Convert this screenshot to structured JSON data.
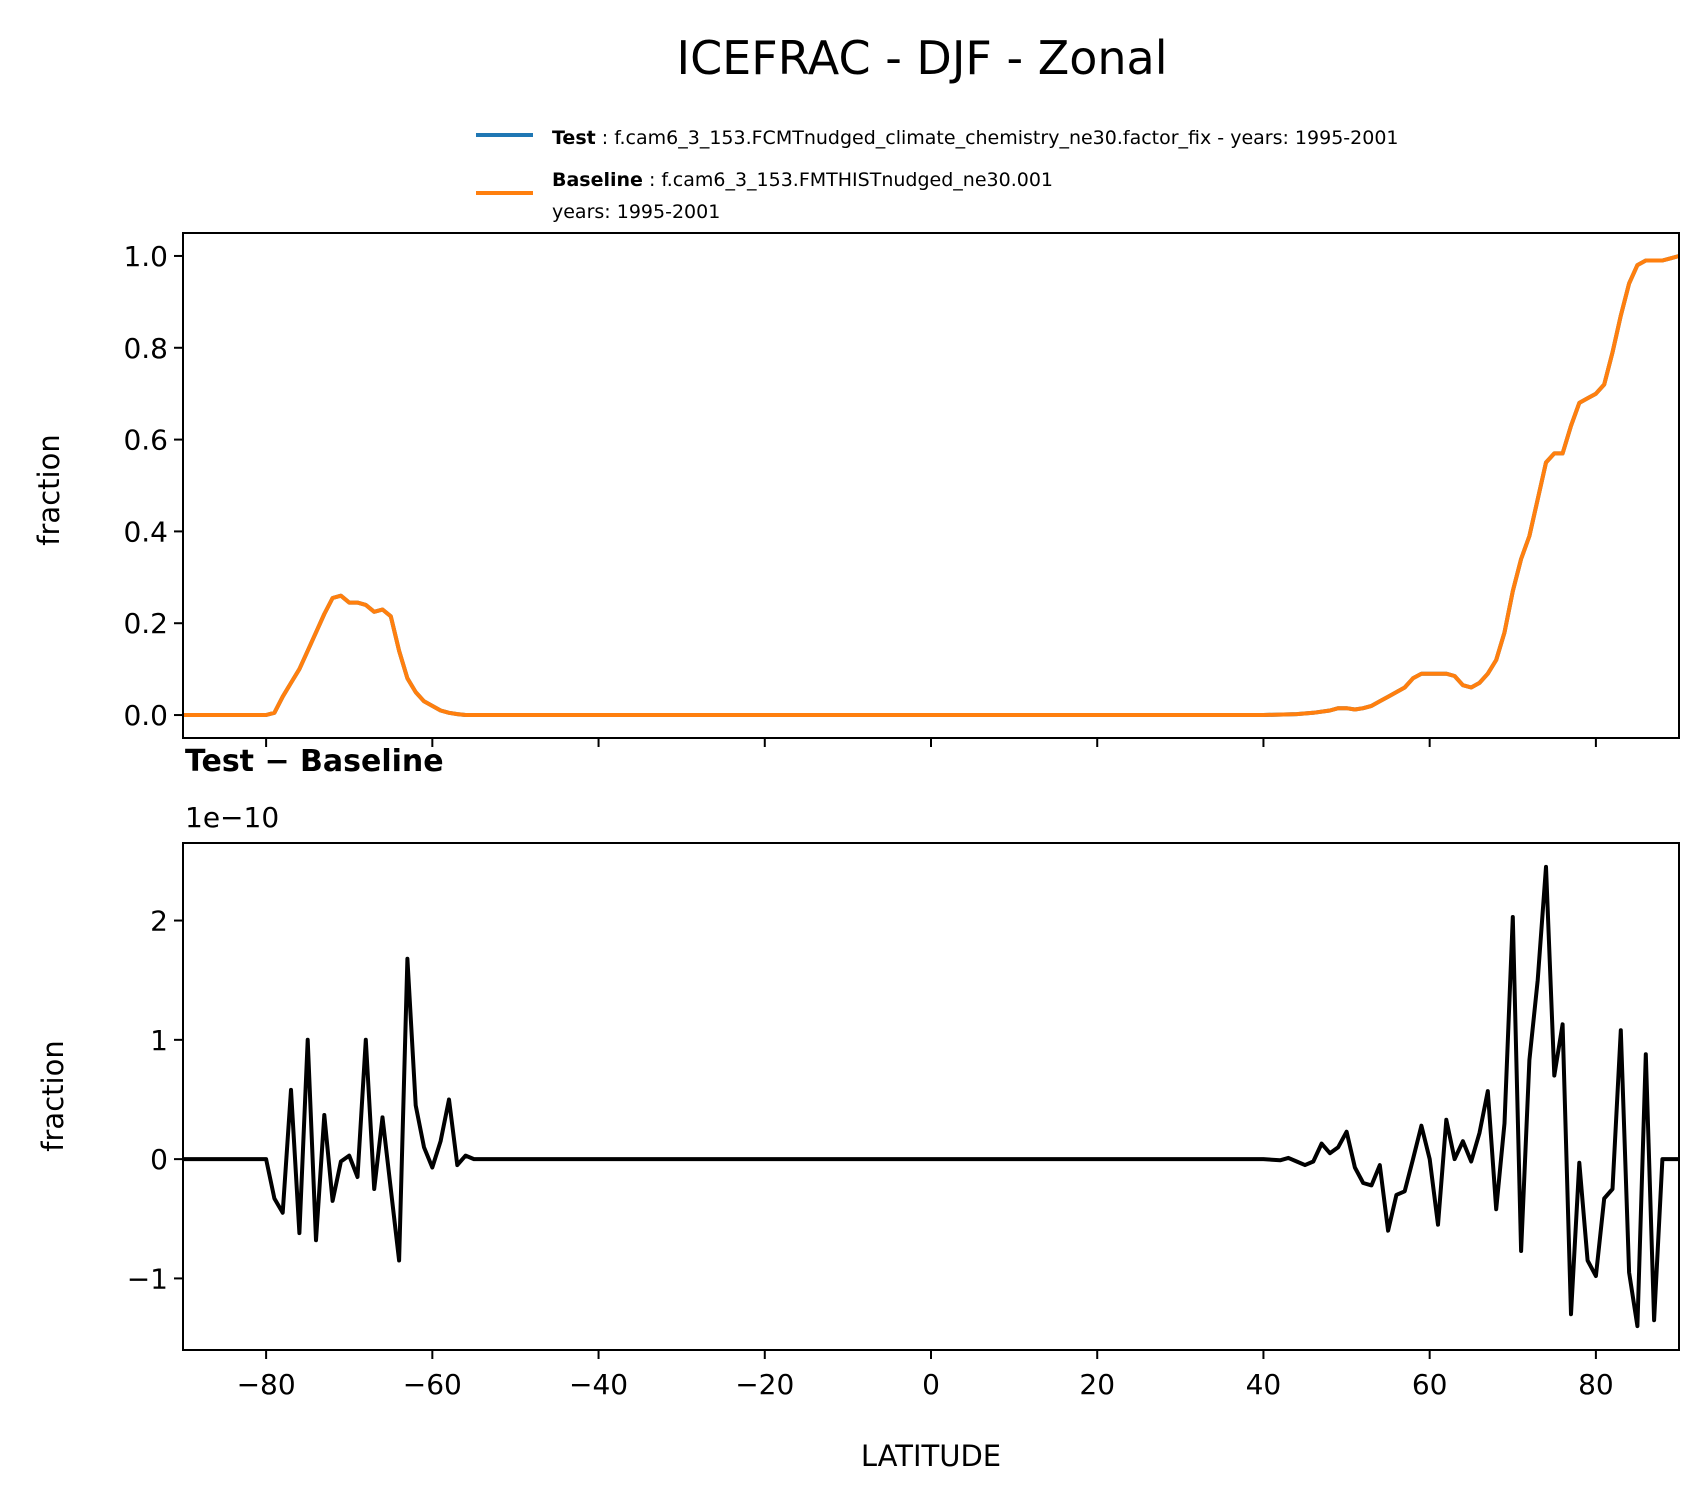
{
  "figure": {
    "title": "ICEFRAC - DJF - Zonal"
  },
  "legend": {
    "entries": [
      {
        "name": "Test",
        "sep": " : ",
        "text": "f.cam6_3_153.FCMTnudged_climate_chemistry_ne30.factor_fix - years: 1995-2001",
        "text2": "",
        "color": "#1f77b4"
      },
      {
        "name": "Baseline",
        "sep": " : ",
        "text": "f.cam6_3_153.FMTHISTnudged_ne30.001",
        "text2": "years: 1995-2001",
        "color": "#ff7f0e"
      }
    ]
  },
  "chart_data": [
    {
      "type": "line",
      "ylabel": "fraction",
      "xlim": [
        -90,
        90
      ],
      "ylim": [
        -0.05,
        1.05
      ],
      "yticks": [
        0.0,
        0.2,
        0.4,
        0.6,
        0.8,
        1.0
      ],
      "ytick_labels": [
        "0.0",
        "0.2",
        "0.4",
        "0.6",
        "0.8",
        "1.0"
      ],
      "xticks": [
        -80,
        -60,
        -40,
        -20,
        0,
        20,
        40,
        60,
        80
      ],
      "series": [
        {
          "name": "Test",
          "color": "#1f77b4",
          "x": [
            -90,
            -80,
            -79,
            -78,
            -77,
            -76,
            -75,
            -74,
            -73,
            -72,
            -71,
            -70,
            -69,
            -68,
            -67,
            -66,
            -65,
            -64,
            -63,
            -62,
            -61,
            -60,
            -59,
            -58,
            -57,
            -56,
            -55,
            -50,
            0,
            40,
            44,
            46,
            48,
            49,
            50,
            51,
            52,
            53,
            54,
            55,
            56,
            57,
            58,
            59,
            60,
            61,
            62,
            63,
            64,
            65,
            66,
            67,
            68,
            69,
            70,
            71,
            72,
            73,
            74,
            75,
            76,
            77,
            78,
            79,
            80,
            81,
            82,
            83,
            84,
            85,
            86,
            87,
            88,
            89,
            90
          ],
          "y": [
            0.0,
            0.0,
            0.005,
            0.04,
            0.07,
            0.1,
            0.14,
            0.18,
            0.22,
            0.255,
            0.26,
            0.245,
            0.245,
            0.24,
            0.225,
            0.23,
            0.215,
            0.14,
            0.08,
            0.05,
            0.03,
            0.02,
            0.01,
            0.005,
            0.002,
            0.0,
            0.0,
            0.0,
            0.0,
            0.0,
            0.002,
            0.005,
            0.01,
            0.015,
            0.015,
            0.012,
            0.015,
            0.02,
            0.03,
            0.04,
            0.05,
            0.06,
            0.08,
            0.09,
            0.09,
            0.09,
            0.09,
            0.085,
            0.065,
            0.06,
            0.07,
            0.09,
            0.12,
            0.18,
            0.27,
            0.34,
            0.39,
            0.47,
            0.55,
            0.57,
            0.57,
            0.63,
            0.68,
            0.69,
            0.7,
            0.72,
            0.79,
            0.87,
            0.94,
            0.98,
            0.99,
            0.99,
            0.99,
            0.995,
            1.0
          ]
        },
        {
          "name": "Baseline",
          "color": "#ff7f0e",
          "x": [
            -90,
            -80,
            -79,
            -78,
            -77,
            -76,
            -75,
            -74,
            -73,
            -72,
            -71,
            -70,
            -69,
            -68,
            -67,
            -66,
            -65,
            -64,
            -63,
            -62,
            -61,
            -60,
            -59,
            -58,
            -57,
            -56,
            -55,
            -50,
            0,
            40,
            44,
            46,
            48,
            49,
            50,
            51,
            52,
            53,
            54,
            55,
            56,
            57,
            58,
            59,
            60,
            61,
            62,
            63,
            64,
            65,
            66,
            67,
            68,
            69,
            70,
            71,
            72,
            73,
            74,
            75,
            76,
            77,
            78,
            79,
            80,
            81,
            82,
            83,
            84,
            85,
            86,
            87,
            88,
            89,
            90
          ],
          "y": [
            0.0,
            0.0,
            0.005,
            0.04,
            0.07,
            0.1,
            0.14,
            0.18,
            0.22,
            0.255,
            0.26,
            0.245,
            0.245,
            0.24,
            0.225,
            0.23,
            0.215,
            0.14,
            0.08,
            0.05,
            0.03,
            0.02,
            0.01,
            0.005,
            0.002,
            0.0,
            0.0,
            0.0,
            0.0,
            0.0,
            0.002,
            0.005,
            0.01,
            0.015,
            0.015,
            0.012,
            0.015,
            0.02,
            0.03,
            0.04,
            0.05,
            0.06,
            0.08,
            0.09,
            0.09,
            0.09,
            0.09,
            0.085,
            0.065,
            0.06,
            0.07,
            0.09,
            0.12,
            0.18,
            0.27,
            0.34,
            0.39,
            0.47,
            0.55,
            0.57,
            0.57,
            0.63,
            0.68,
            0.69,
            0.7,
            0.72,
            0.79,
            0.87,
            0.94,
            0.98,
            0.99,
            0.99,
            0.99,
            0.995,
            1.0
          ]
        }
      ]
    },
    {
      "type": "line",
      "title": "Test − Baseline",
      "offset_label": "1e−10",
      "ylabel": "fraction",
      "xlabel": "LATITUDE",
      "xlim": [
        -90,
        90
      ],
      "ylim": [
        -1.6,
        2.65
      ],
      "yticks": [
        -1,
        0,
        1,
        2
      ],
      "ytick_labels": [
        "−1",
        "0",
        "1",
        "2"
      ],
      "xticks": [
        -80,
        -60,
        -40,
        -20,
        0,
        20,
        40,
        60,
        80
      ],
      "xtick_labels": [
        "−80",
        "−60",
        "−40",
        "−20",
        "0",
        "20",
        "40",
        "60",
        "80"
      ],
      "series": [
        {
          "name": "Test − Baseline",
          "color": "#000000",
          "x": [
            -90,
            -80,
            -79,
            -78,
            -77,
            -76,
            -75,
            -74,
            -73,
            -72,
            -71,
            -70,
            -69,
            -68,
            -67,
            -66,
            -65,
            -64,
            -63,
            -62,
            -61,
            -60,
            -59,
            -58,
            -57,
            -56,
            -55,
            -50,
            0,
            40,
            42,
            43,
            44,
            45,
            46,
            47,
            48,
            49,
            50,
            51,
            52,
            53,
            54,
            55,
            56,
            57,
            58,
            59,
            60,
            61,
            62,
            63,
            64,
            65,
            66,
            67,
            68,
            69,
            70,
            71,
            72,
            73,
            74,
            75,
            76,
            77,
            78,
            79,
            80,
            81,
            82,
            83,
            84,
            85,
            86,
            87,
            88,
            89,
            90
          ],
          "y": [
            0.0,
            0.0,
            -0.33,
            -0.45,
            0.58,
            -0.62,
            1.0,
            -0.68,
            0.37,
            -0.35,
            -0.02,
            0.03,
            -0.15,
            1.0,
            -0.25,
            0.35,
            -0.25,
            -0.85,
            1.68,
            0.45,
            0.1,
            -0.07,
            0.15,
            0.5,
            -0.05,
            0.03,
            0.0,
            0.0,
            0.0,
            0.0,
            -0.01,
            0.01,
            -0.02,
            -0.05,
            -0.02,
            0.13,
            0.05,
            0.1,
            0.23,
            -0.07,
            -0.2,
            -0.22,
            -0.05,
            -0.6,
            -0.3,
            -0.27,
            0.0,
            0.28,
            0.0,
            -0.55,
            0.33,
            0.0,
            0.15,
            -0.02,
            0.22,
            0.57,
            -0.42,
            0.3,
            2.03,
            -0.77,
            0.83,
            1.5,
            2.45,
            0.7,
            1.13,
            -1.3,
            -0.03,
            -0.85,
            -0.98,
            -0.33,
            -0.25,
            1.08,
            -0.95,
            -1.4,
            0.88,
            -1.35,
            0.0,
            0.0,
            0.0
          ]
        }
      ]
    }
  ]
}
